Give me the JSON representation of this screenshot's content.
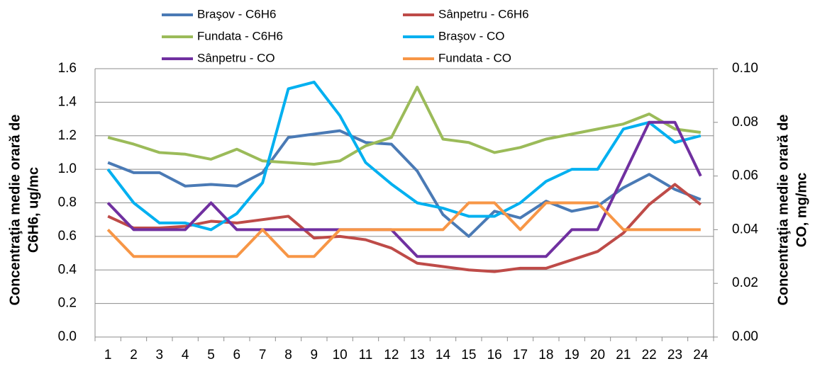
{
  "chart_data": {
    "type": "line",
    "categories": [
      "1",
      "2",
      "3",
      "4",
      "5",
      "6",
      "7",
      "8",
      "9",
      "10",
      "11",
      "12",
      "13",
      "14",
      "15",
      "16",
      "17",
      "18",
      "19",
      "20",
      "21",
      "22",
      "23",
      "24"
    ],
    "series": [
      {
        "name": "Braşov - C6H6",
        "color": "#4a7ab5",
        "values": [
          1.04,
          0.98,
          0.98,
          0.9,
          0.91,
          0.9,
          0.98,
          1.19,
          1.21,
          1.23,
          1.16,
          1.15,
          0.99,
          0.73,
          0.6,
          0.75,
          0.71,
          0.81,
          0.75,
          0.78,
          0.89,
          0.97,
          0.88,
          0.82
        ]
      },
      {
        "name": "Sânpetru - C6H6",
        "color": "#be4b48",
        "values": [
          0.72,
          0.65,
          0.65,
          0.66,
          0.69,
          0.68,
          0.7,
          0.72,
          0.59,
          0.6,
          0.58,
          0.53,
          0.44,
          0.42,
          0.4,
          0.39,
          0.41,
          0.41,
          0.46,
          0.51,
          0.62,
          0.79,
          0.91,
          0.79
        ]
      },
      {
        "name": "Fundata - C6H6",
        "color": "#9bbb59",
        "values": [
          1.19,
          1.15,
          1.1,
          1.09,
          1.06,
          1.12,
          1.05,
          1.04,
          1.03,
          1.05,
          1.14,
          1.19,
          1.49,
          1.18,
          1.16,
          1.1,
          1.13,
          1.18,
          1.21,
          1.24,
          1.27,
          1.33,
          1.24,
          1.22
        ]
      },
      {
        "name": "Braşov - CO",
        "color": "#00b0f0",
        "axis": "y2",
        "values": [
          0.0625,
          0.05,
          0.0425,
          0.0425,
          0.04,
          0.046,
          0.0575,
          0.0925,
          0.095,
          0.0825,
          0.065,
          0.057,
          0.05,
          0.048,
          0.045,
          0.045,
          0.05,
          0.058,
          0.0625,
          0.0625,
          0.0775,
          0.08,
          0.0725,
          0.075
        ]
      },
      {
        "name": "Sânpetru - CO",
        "color": "#7030a0",
        "axis": "y2",
        "values": [
          0.05,
          0.04,
          0.04,
          0.04,
          0.05,
          0.04,
          0.04,
          0.04,
          0.04,
          0.04,
          0.04,
          0.04,
          0.03,
          0.03,
          0.03,
          0.03,
          0.03,
          0.03,
          0.04,
          0.04,
          0.06,
          0.08,
          0.08,
          0.06
        ]
      },
      {
        "name": "Fundata - CO",
        "color": "#f79646",
        "axis": "y2",
        "values": [
          0.04,
          0.03,
          0.03,
          0.03,
          0.03,
          0.03,
          0.04,
          0.03,
          0.03,
          0.04,
          0.04,
          0.04,
          0.04,
          0.04,
          0.05,
          0.05,
          0.04,
          0.05,
          0.05,
          0.05,
          0.04,
          0.04,
          0.04,
          0.04
        ]
      }
    ],
    "y_label": [
      "Concentraţia medie orară de",
      "C6H6, ug/mc"
    ],
    "y2_label": [
      "Concentraţia medie orară de",
      "CO, mg/mc"
    ],
    "ylim": [
      0,
      1.6
    ],
    "yticks": [
      {
        "value": 0,
        "label": "0.0"
      },
      0.2,
      0.4,
      0.6,
      0.8,
      {
        "value": 1,
        "label": "1.0"
      },
      1.2,
      1.4,
      1.6
    ],
    "y2lim": [
      0,
      0.1
    ],
    "y2ticks": [
      {
        "value": 0,
        "label": "0.00"
      },
      0.02,
      0.04,
      0.06,
      0.08,
      {
        "value": 0.1,
        "label": "0.10"
      }
    ],
    "grid": true,
    "legend": "top"
  }
}
